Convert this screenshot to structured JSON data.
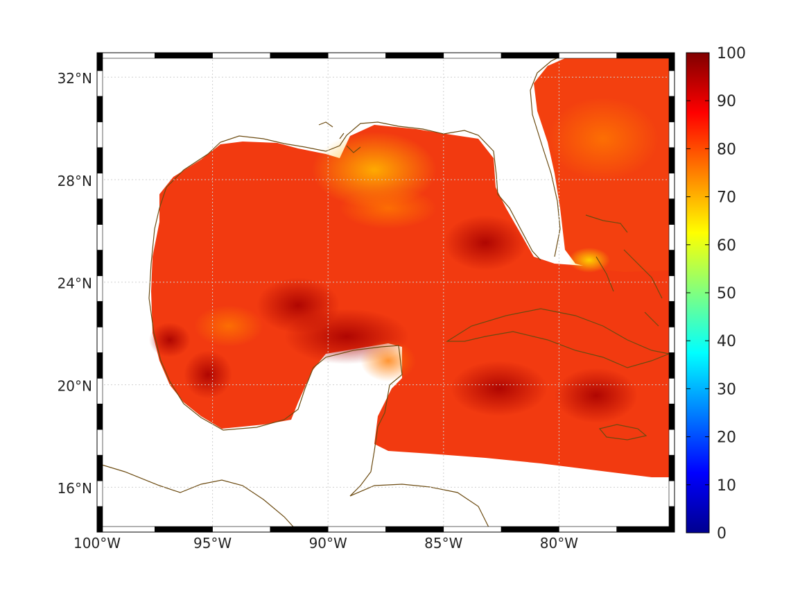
{
  "map": {
    "extent": {
      "lon": [
        -100,
        -75
      ],
      "lat": [
        14.3,
        33
      ]
    },
    "lon_ticks": [
      {
        "value": -100,
        "label": "100°W"
      },
      {
        "value": -95,
        "label": "95°W"
      },
      {
        "value": -90,
        "label": "90°W"
      },
      {
        "value": -85,
        "label": "85°W"
      },
      {
        "value": -80,
        "label": "80°W"
      }
    ],
    "lat_ticks": [
      {
        "value": 32,
        "label": "32°N"
      },
      {
        "value": 28,
        "label": "28°N"
      },
      {
        "value": 24,
        "label": "24°N"
      },
      {
        "value": 20,
        "label": "20°N"
      },
      {
        "value": 16,
        "label": "16°N"
      }
    ],
    "grid": true,
    "frame_style": "alternating black-white",
    "coastline_color": "#6b4a10",
    "field_colormap": "jet",
    "field_note_colors": [
      "#e84010",
      "#ff2a00",
      "#ff6a00",
      "#ffb000",
      "#c00000"
    ]
  },
  "colorbar": {
    "range": [
      0,
      100
    ],
    "ticks": [
      "100",
      "90",
      "80",
      "70",
      "60",
      "50",
      "40",
      "30",
      "20",
      "10",
      "0"
    ],
    "tick_values": [
      100,
      90,
      80,
      70,
      60,
      50,
      40,
      30,
      20,
      10,
      0
    ],
    "placement": "right",
    "colors": [
      "#00008f",
      "#0000ff",
      "#0080ff",
      "#00ffff",
      "#80ff80",
      "#ffff00",
      "#ff8000",
      "#ff0000",
      "#800000"
    ]
  }
}
